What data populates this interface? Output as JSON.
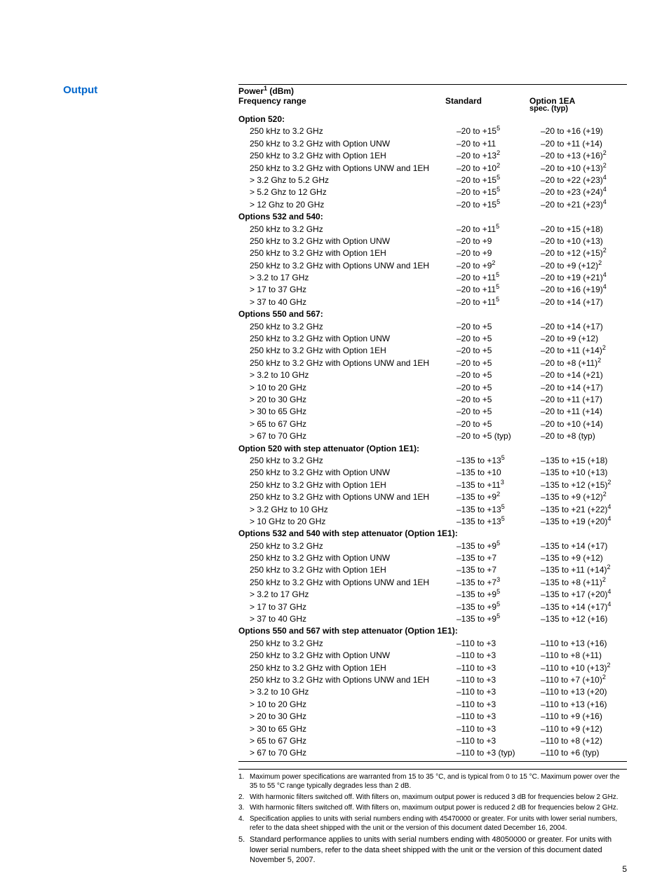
{
  "section_title": "Output",
  "power_label_html": "Power<sup>1</sup> (dBm)",
  "header_cols": {
    "freq": "Frequency range",
    "std": "Standard",
    "opt": "Option 1EA",
    "opt_sub": "spec. (typ)"
  },
  "blocks": [
    {
      "title": "Option 520:",
      "rows": [
        {
          "f": "250 kHz to 3.2 GHz",
          "s": "–20 to +15<sup>5</sup>",
          "o": "–20 to +16 (+19)"
        },
        {
          "f": "250 kHz to 3.2 GHz with Option UNW",
          "s": "–20 to +11",
          "o": "–20 to +11 (+14)"
        },
        {
          "f": "250 kHz to 3.2 GHz with Option 1EH",
          "s": "–20 to +13<sup>2</sup>",
          "o": "–20 to +13 (+16)<sup>2</sup>"
        },
        {
          "f": "250 kHz to 3.2 GHz with Options UNW and 1EH",
          "s": "–20 to +10<sup>2</sup>",
          "o": "–20 to +10 (+13)<sup>2</sup>"
        },
        {
          "f": "> 3.2 Ghz to 5.2 GHz",
          "s": "–20 to +15<sup>5</sup>",
          "o": "–20 to +22 (+23)<sup>4</sup>"
        },
        {
          "f": "> 5.2 Ghz to 12 GHz",
          "s": "–20 to +15<sup>5</sup>",
          "o": "–20 to +23 (+24)<sup>4</sup>"
        },
        {
          "f": "> 12 Ghz to 20 GHz",
          "s": "–20 to +15<sup>5</sup>",
          "o": "–20 to +21 (+23)<sup>4</sup>"
        }
      ]
    },
    {
      "title": "Options 532 and 540:",
      "rows": [
        {
          "f": "250 kHz to 3.2 GHz",
          "s": "–20 to +11<sup>5</sup>",
          "o": "–20 to +15 (+18)"
        },
        {
          "f": "250 kHz to 3.2 GHz with Option UNW",
          "s": "–20 to +9",
          "o": "–20 to +10 (+13)"
        },
        {
          "f": "250 kHz to 3.2 GHz with Option 1EH",
          "s": "–20 to +9",
          "o": "–20 to +12 (+15)<sup>2</sup>"
        },
        {
          "f": "250 kHz to 3.2 GHz with Options UNW and 1EH",
          "s": "–20 to +9<sup>2</sup>",
          "o": "–20 to +9 (+12)<sup>2</sup>"
        },
        {
          "f": "> 3.2 to 17 GHz",
          "s": "–20 to +11<sup>5</sup>",
          "o": "–20 to +19 (+21)<sup>4</sup>"
        },
        {
          "f": "> 17 to 37 GHz",
          "s": "–20 to +11<sup>5</sup>",
          "o": "–20 to +16 (+19)<sup>4</sup>"
        },
        {
          "f": "> 37 to 40 GHz",
          "s": "–20 to +11<sup>5</sup>",
          "o": "–20 to +14 (+17)"
        }
      ]
    },
    {
      "title": "Options 550 and 567:",
      "rows": [
        {
          "f": "250 kHz to 3.2 GHz",
          "s": "–20 to +5",
          "o": "–20 to +14 (+17)"
        },
        {
          "f": "250 kHz to 3.2 GHz with Option UNW",
          "s": "–20 to +5",
          "o": "–20 to +9 (+12)"
        },
        {
          "f": "250 kHz to 3.2 GHz with Option 1EH",
          "s": "–20 to +5",
          "o": "–20 to +11 (+14)<sup>2</sup>"
        },
        {
          "f": "250 kHz to 3.2 GHz with Options UNW and 1EH",
          "s": "–20 to +5",
          "o": "–20 to +8 (+11)<sup>2</sup>"
        },
        {
          "f": "> 3.2 to 10 GHz",
          "s": "–20 to +5",
          "o": "–20 to +14 (+21)"
        },
        {
          "f": "> 10 to 20 GHz",
          "s": "–20 to +5",
          "o": "–20 to +14 (+17)"
        },
        {
          "f": "> 20 to 30 GHz",
          "s": "–20 to +5",
          "o": "–20 to +11 (+17)"
        },
        {
          "f": "> 30 to 65 GHz",
          "s": "–20 to +5",
          "o": "–20 to +11 (+14)"
        },
        {
          "f": "> 65 to 67 GHz",
          "s": "–20 to +5",
          "o": "–20 to +10 (+14)"
        },
        {
          "f": "> 67 to 70 GHz",
          "s": "–20 to +5 (typ)",
          "o": "–20 to +8 (typ)"
        }
      ]
    },
    {
      "title": "Option 520 with step attenuator (Option 1E1):",
      "rows": [
        {
          "f": "250 kHz to 3.2 GHz",
          "s": "–135 to +13<sup>5</sup>",
          "o": "–135 to +15 (+18)"
        },
        {
          "f": "250 kHz to 3.2 GHz with Option UNW",
          "s": "–135 to +10",
          "o": "–135 to +10 (+13)"
        },
        {
          "f": "250 kHz to 3.2 GHz with Option 1EH",
          "s": "–135 to +11<sup>3</sup>",
          "o": "–135 to +12 (+15)<sup>2</sup>"
        },
        {
          "f": "250 kHz to 3.2 GHz with Options UNW and 1EH",
          "s": "–135 to +9<sup>2</sup>",
          "o": "–135 to +9 (+12)<sup>2</sup>"
        },
        {
          "f": "> 3.2 GHz to 10 GHz",
          "s": "–135 to +13<sup>5</sup>",
          "o": "–135 to +21 (+22)<sup>4</sup>"
        },
        {
          "f": "> 10 GHz to 20 GHz",
          "s": "–135 to +13<sup>5</sup>",
          "o": "–135 to +19 (+20)<sup>4</sup>"
        }
      ]
    },
    {
      "title": "Options 532 and 540 with step attenuator (Option 1E1):",
      "rows": [
        {
          "f": "250 kHz to 3.2 GHz",
          "s": "–135 to +9<sup>5</sup>",
          "o": "–135 to +14 (+17)"
        },
        {
          "f": "250 kHz to 3.2 GHz with Option UNW",
          "s": "–135 to +7",
          "o": "–135 to +9 (+12)"
        },
        {
          "f": "250 kHz to 3.2 GHz with Option 1EH",
          "s": "–135 to +7",
          "o": "–135 to +11 (+14)<sup>2</sup>"
        },
        {
          "f": "250 kHz to 3.2 GHz with Options UNW and 1EH",
          "s": "–135 to +7<sup>3</sup>",
          "o": "–135 to +8 (+11)<sup>2</sup>"
        },
        {
          "f": "> 3.2 to 17 GHz",
          "s": "–135 to +9<sup>5</sup>",
          "o": "–135 to +17 (+20)<sup>4</sup>"
        },
        {
          "f": "> 17 to 37 GHz",
          "s": "–135 to +9<sup>5</sup>",
          "o": "–135 to +14 (+17)<sup>4</sup>"
        },
        {
          "f": "> 37 to 40 GHz",
          "s": "–135 to +9<sup>5</sup>",
          "o": "–135 to +12 (+16)"
        }
      ]
    },
    {
      "title": "Options 550 and 567 with step attenuator (Option 1E1):",
      "rows": [
        {
          "f": "250 kHz to 3.2 GHz",
          "s": "–110 to +3",
          "o": "–110 to +13 (+16)"
        },
        {
          "f": "250 kHz to 3.2 GHz with Option UNW",
          "s": "–110 to +3",
          "o": "–110 to +8 (+11)"
        },
        {
          "f": "250 kHz to 3.2 GHz with Option 1EH",
          "s": "–110 to +3",
          "o": "–110 to +10 (+13)<sup>2</sup>"
        },
        {
          "f": "250 kHz to 3.2 GHz with Options UNW and 1EH",
          "s": "–110 to +3",
          "o": "–110 to +7 (+10)<sup>2</sup>"
        },
        {
          "f": "> 3.2 to 10 GHz",
          "s": "–110 to +3",
          "o": "–110 to +13 (+20)"
        },
        {
          "f": "> 10 to 20 GHz",
          "s": "–110 to +3",
          "o": "–110 to +13 (+16)"
        },
        {
          "f": "> 20 to 30 GHz",
          "s": "–110 to +3",
          "o": "–110 to +9 (+16)"
        },
        {
          "f": "> 30 to 65 GHz",
          "s": "–110 to +3",
          "o": "–110 to +9 (+12)"
        },
        {
          "f": "> 65 to 67 GHz",
          "s": "–110 to +3",
          "o": "–110 to +8 (+12)"
        },
        {
          "f": "> 67 to 70 GHz",
          "s": "–110 to +3 (typ)",
          "o": "–110 to +6 (typ)"
        }
      ]
    }
  ],
  "footnotes": [
    {
      "n": "1.",
      "t": "Maximum power specifications are warranted from 15 to 35 °C, and is typical from 0 to 15 °C. Maximum power over the 35 to 55 °C range typically degrades less than 2 dB."
    },
    {
      "n": "2.",
      "t": "With harmonic filters switched off. With filters on, maximum output power is reduced 3 dB for frequencies below 2 GHz."
    },
    {
      "n": "3.",
      "t": "With harmonic filters switched off. With filters on, maximum output power is reduced 2 dB for frequencies below 2 GHz."
    },
    {
      "n": "4.",
      "t": "Specification applies to units with serial numbers ending with 45470000 or greater. For units with lower serial numbers, refer to the data sheet shipped with the unit or the version of this document dated December 16, 2004."
    },
    {
      "n": "5.",
      "t": "Standard performance applies to units with serial numbers ending with 48050000 or greater. For units with lower serial numbers, refer to the data sheet shipped with the unit or the version of this document dated November 5, 2007.",
      "big": true
    }
  ],
  "page_number": "5"
}
